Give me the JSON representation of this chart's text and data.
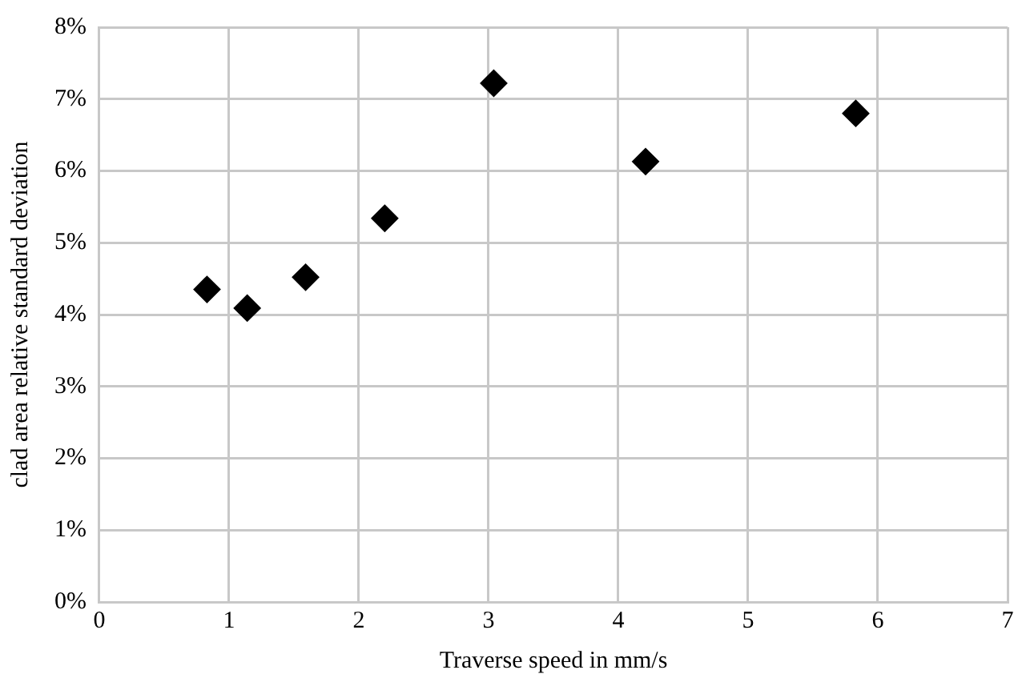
{
  "chart_data": {
    "type": "scatter",
    "xlabel": "Traverse speed in mm/s",
    "ylabel": "clad area relative standard deviation",
    "x": [
      0.83,
      1.14,
      1.59,
      2.2,
      3.04,
      4.21,
      5.83
    ],
    "series": [
      {
        "color": "#000000",
        "values": [
          4.35,
          4.09,
          4.52,
          5.34,
          7.22,
          6.13,
          6.8
        ]
      }
    ],
    "xlim": [
      0,
      7
    ],
    "xticks": [
      0,
      1,
      2,
      3,
      4,
      5,
      6,
      7
    ],
    "ylim": [
      0,
      8
    ],
    "yticks": [
      {
        "value": 0,
        "label": "0%"
      },
      {
        "value": 1,
        "label": "1%"
      },
      {
        "value": 2,
        "label": "2%"
      },
      {
        "value": 3,
        "label": "3%"
      },
      {
        "value": 4,
        "label": "4%"
      },
      {
        "value": 5,
        "label": "5%"
      },
      {
        "value": 6,
        "label": "6%"
      },
      {
        "value": 7,
        "label": "7%"
      },
      {
        "value": 8,
        "label": "8%"
      }
    ],
    "grid": true,
    "marker": "diamond",
    "legend": false
  }
}
